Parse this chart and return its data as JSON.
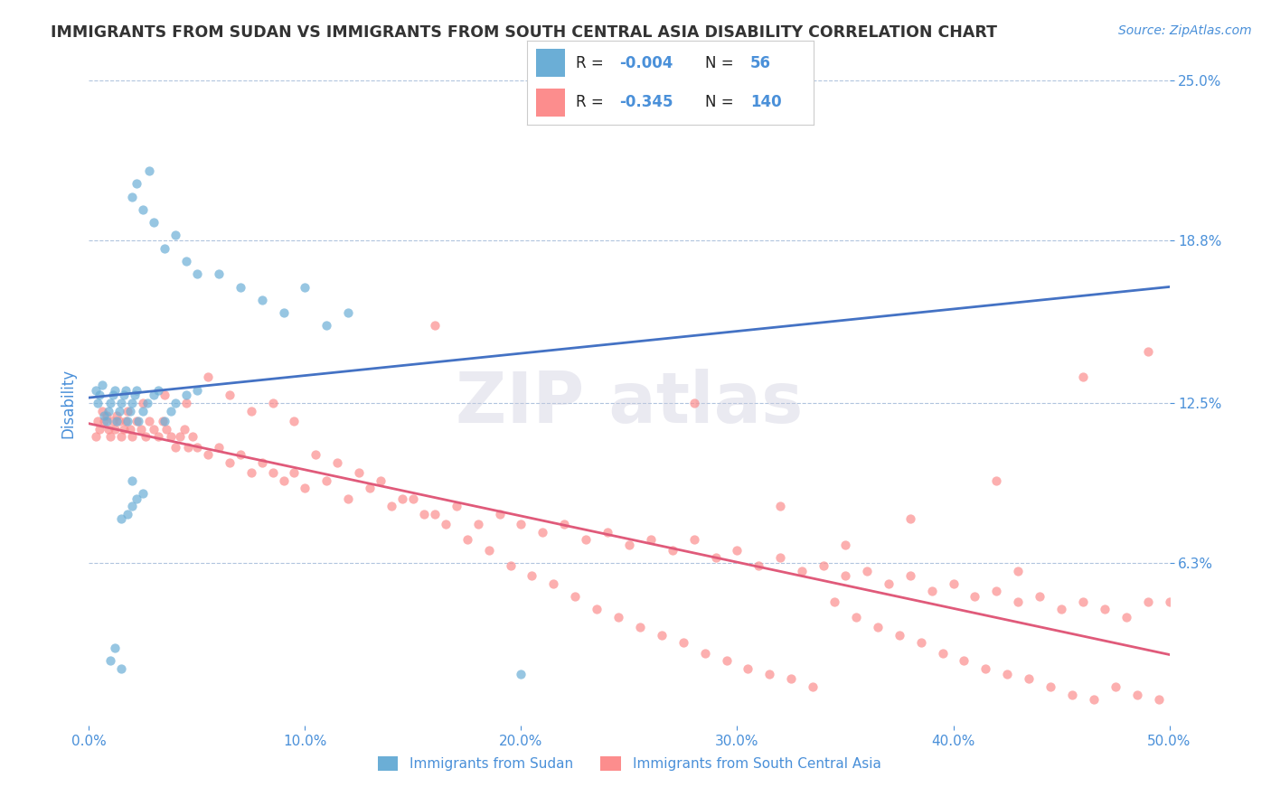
{
  "title": "IMMIGRANTS FROM SUDAN VS IMMIGRANTS FROM SOUTH CENTRAL ASIA DISABILITY CORRELATION CHART",
  "source": "Source: ZipAtlas.com",
  "ylabel": "Disability",
  "xlim": [
    0.0,
    0.5
  ],
  "ylim": [
    0.0,
    0.25
  ],
  "xtick_labels": [
    "0.0%",
    "10.0%",
    "20.0%",
    "30.0%",
    "40.0%",
    "50.0%"
  ],
  "xtick_vals": [
    0.0,
    0.1,
    0.2,
    0.3,
    0.4,
    0.5
  ],
  "ytick_right_labels": [
    "6.3%",
    "12.5%",
    "18.8%",
    "25.0%"
  ],
  "ytick_right_vals": [
    0.063,
    0.125,
    0.188,
    0.25
  ],
  "color_sudan": "#6baed6",
  "color_sca": "#fc8d8d",
  "color_sudan_line": "#4472c4",
  "color_sca_line": "#e05a7a",
  "legend_label1": "Immigrants from Sudan",
  "legend_label2": "Immigrants from South Central Asia",
  "background_color": "#ffffff",
  "title_color": "#333333",
  "axis_label_color": "#4a90d9",
  "sudan_x": [
    0.003,
    0.004,
    0.005,
    0.006,
    0.007,
    0.008,
    0.009,
    0.01,
    0.011,
    0.012,
    0.013,
    0.014,
    0.015,
    0.016,
    0.017,
    0.018,
    0.019,
    0.02,
    0.021,
    0.022,
    0.023,
    0.025,
    0.027,
    0.03,
    0.032,
    0.035,
    0.038,
    0.04,
    0.045,
    0.05,
    0.02,
    0.022,
    0.025,
    0.028,
    0.03,
    0.035,
    0.04,
    0.045,
    0.05,
    0.06,
    0.07,
    0.08,
    0.09,
    0.1,
    0.11,
    0.12,
    0.015,
    0.02,
    0.018,
    0.022,
    0.01,
    0.012,
    0.015,
    0.2,
    0.02,
    0.025
  ],
  "sudan_y": [
    0.13,
    0.125,
    0.128,
    0.132,
    0.12,
    0.118,
    0.122,
    0.125,
    0.128,
    0.13,
    0.118,
    0.122,
    0.125,
    0.128,
    0.13,
    0.118,
    0.122,
    0.125,
    0.128,
    0.13,
    0.118,
    0.122,
    0.125,
    0.128,
    0.13,
    0.118,
    0.122,
    0.125,
    0.128,
    0.13,
    0.205,
    0.21,
    0.2,
    0.215,
    0.195,
    0.185,
    0.19,
    0.18,
    0.175,
    0.175,
    0.17,
    0.165,
    0.16,
    0.17,
    0.155,
    0.16,
    0.08,
    0.085,
    0.082,
    0.088,
    0.025,
    0.03,
    0.022,
    0.02,
    0.095,
    0.09
  ],
  "sca_x": [
    0.003,
    0.004,
    0.005,
    0.006,
    0.007,
    0.008,
    0.009,
    0.01,
    0.011,
    0.012,
    0.013,
    0.014,
    0.015,
    0.016,
    0.017,
    0.018,
    0.019,
    0.02,
    0.022,
    0.024,
    0.026,
    0.028,
    0.03,
    0.032,
    0.034,
    0.036,
    0.038,
    0.04,
    0.042,
    0.044,
    0.046,
    0.048,
    0.05,
    0.055,
    0.06,
    0.065,
    0.07,
    0.075,
    0.08,
    0.085,
    0.09,
    0.095,
    0.1,
    0.11,
    0.12,
    0.13,
    0.14,
    0.15,
    0.16,
    0.17,
    0.18,
    0.19,
    0.2,
    0.21,
    0.22,
    0.23,
    0.24,
    0.25,
    0.26,
    0.27,
    0.28,
    0.29,
    0.3,
    0.31,
    0.32,
    0.33,
    0.34,
    0.35,
    0.36,
    0.37,
    0.38,
    0.39,
    0.4,
    0.41,
    0.42,
    0.43,
    0.44,
    0.45,
    0.46,
    0.47,
    0.48,
    0.49,
    0.5,
    0.025,
    0.035,
    0.045,
    0.055,
    0.065,
    0.075,
    0.085,
    0.095,
    0.105,
    0.115,
    0.125,
    0.135,
    0.145,
    0.155,
    0.165,
    0.175,
    0.185,
    0.195,
    0.205,
    0.215,
    0.225,
    0.235,
    0.245,
    0.255,
    0.265,
    0.275,
    0.285,
    0.295,
    0.305,
    0.315,
    0.325,
    0.335,
    0.345,
    0.355,
    0.365,
    0.375,
    0.385,
    0.395,
    0.405,
    0.415,
    0.425,
    0.435,
    0.445,
    0.455,
    0.465,
    0.475,
    0.485,
    0.495,
    0.16,
    0.28,
    0.32,
    0.35,
    0.42,
    0.46,
    0.49,
    0.43,
    0.38
  ],
  "sca_y": [
    0.112,
    0.118,
    0.115,
    0.122,
    0.118,
    0.12,
    0.115,
    0.112,
    0.118,
    0.115,
    0.12,
    0.118,
    0.112,
    0.115,
    0.118,
    0.122,
    0.115,
    0.112,
    0.118,
    0.115,
    0.112,
    0.118,
    0.115,
    0.112,
    0.118,
    0.115,
    0.112,
    0.108,
    0.112,
    0.115,
    0.108,
    0.112,
    0.108,
    0.105,
    0.108,
    0.102,
    0.105,
    0.098,
    0.102,
    0.098,
    0.095,
    0.098,
    0.092,
    0.095,
    0.088,
    0.092,
    0.085,
    0.088,
    0.082,
    0.085,
    0.078,
    0.082,
    0.078,
    0.075,
    0.078,
    0.072,
    0.075,
    0.07,
    0.072,
    0.068,
    0.072,
    0.065,
    0.068,
    0.062,
    0.065,
    0.06,
    0.062,
    0.058,
    0.06,
    0.055,
    0.058,
    0.052,
    0.055,
    0.05,
    0.052,
    0.048,
    0.05,
    0.045,
    0.048,
    0.045,
    0.042,
    0.048,
    0.048,
    0.125,
    0.128,
    0.125,
    0.135,
    0.128,
    0.122,
    0.125,
    0.118,
    0.105,
    0.102,
    0.098,
    0.095,
    0.088,
    0.082,
    0.078,
    0.072,
    0.068,
    0.062,
    0.058,
    0.055,
    0.05,
    0.045,
    0.042,
    0.038,
    0.035,
    0.032,
    0.028,
    0.025,
    0.022,
    0.02,
    0.018,
    0.015,
    0.048,
    0.042,
    0.038,
    0.035,
    0.032,
    0.028,
    0.025,
    0.022,
    0.02,
    0.018,
    0.015,
    0.012,
    0.01,
    0.015,
    0.012,
    0.01,
    0.155,
    0.125,
    0.085,
    0.07,
    0.095,
    0.135,
    0.145,
    0.06,
    0.08
  ]
}
